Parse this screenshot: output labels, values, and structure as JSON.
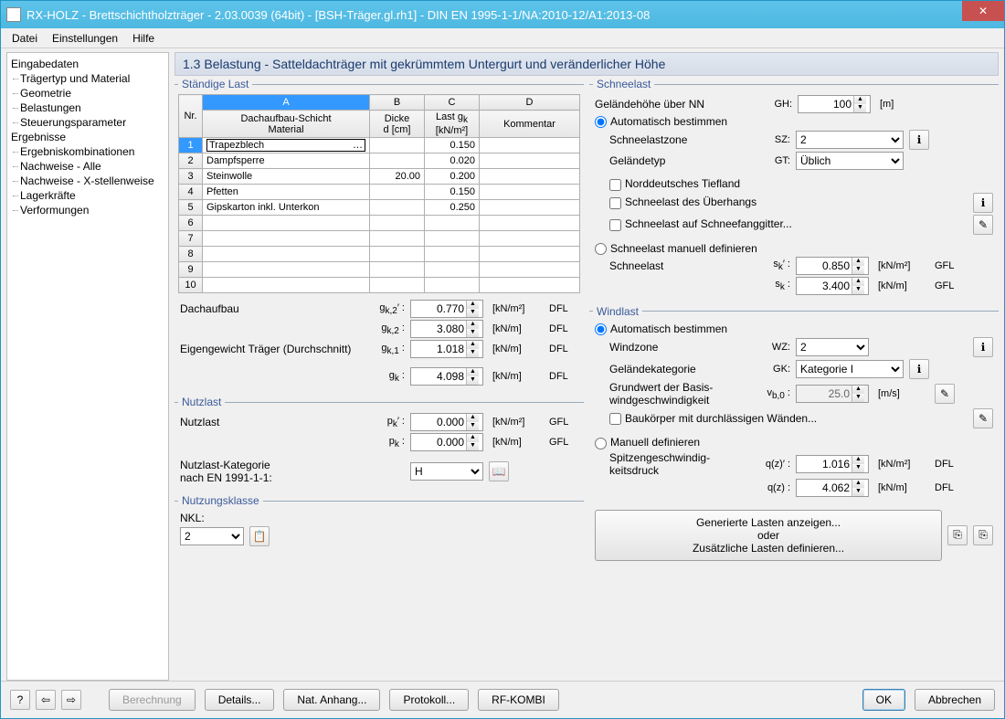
{
  "window": {
    "title": "RX-HOLZ - Brettschichtholzträger - 2.03.0039 (64bit) - [BSH-Träger.gl.rh1] - DIN EN 1995-1-1/NA:2010-12/A1:2013-08"
  },
  "menu": {
    "file": "Datei",
    "settings": "Einstellungen",
    "help": "Hilfe"
  },
  "tree": {
    "g1": "Eingabedaten",
    "i1": "Trägertyp und Material",
    "i2": "Geometrie",
    "i3": "Belastungen",
    "i4": "Steuerungsparameter",
    "g2": "Ergebnisse",
    "i5": "Ergebniskombinationen",
    "i6": "Nachweise - Alle",
    "i7": "Nachweise - X-stellenweise",
    "i8": "Lagerkräfte",
    "i9": "Verformungen"
  },
  "header": "1.3 Belastung  -  Satteldachträger mit gekrümmtem Untergurt und veränderlicher Höhe",
  "staendige": {
    "legend": "Ständige Last",
    "cols": {
      "nr": "Nr.",
      "A": "A",
      "B": "B",
      "C": "C",
      "D": "D",
      "mat_l1": "Dachaufbau-Schicht",
      "mat_l2": "Material",
      "dicke_l1": "Dicke",
      "dicke_l2": "d [cm]",
      "last_l1": "Last g",
      "last_sub": "k",
      "last_l2": "[kN/m²]",
      "komm": "Kommentar"
    },
    "rows": [
      {
        "n": "1",
        "mat": "Trapezblech",
        "d": "",
        "g": "0.150",
        "k": ""
      },
      {
        "n": "2",
        "mat": "Dampfsperre",
        "d": "",
        "g": "0.020",
        "k": ""
      },
      {
        "n": "3",
        "mat": "Steinwolle",
        "d": "20.00",
        "g": "0.200",
        "k": ""
      },
      {
        "n": "4",
        "mat": "Pfetten",
        "d": "",
        "g": "0.150",
        "k": ""
      },
      {
        "n": "5",
        "mat": "Gipskarton inkl. Unterkon",
        "d": "",
        "g": "0.250",
        "k": ""
      },
      {
        "n": "6",
        "mat": "",
        "d": "",
        "g": "",
        "k": ""
      },
      {
        "n": "7",
        "mat": "",
        "d": "",
        "g": "",
        "k": ""
      },
      {
        "n": "8",
        "mat": "",
        "d": "",
        "g": "",
        "k": ""
      },
      {
        "n": "9",
        "mat": "",
        "d": "",
        "g": "",
        "k": ""
      },
      {
        "n": "10",
        "mat": "",
        "d": "",
        "g": "",
        "k": ""
      }
    ],
    "sum": {
      "dach": "Dachaufbau",
      "gk2a": "0.770",
      "gk2a_u": "[kN/m²]",
      "gk2a_c": "DFL",
      "gk2b": "3.080",
      "gk2b_u": "[kN/m]",
      "gk2b_c": "DFL",
      "eig": "Eigengewicht Träger (Durchschnitt)",
      "gk1": "1.018",
      "gk1_u": "[kN/m]",
      "gk1_c": "DFL",
      "gk": "4.098",
      "gk_u": "[kN/m]",
      "gk_c": "DFL",
      "sym_gk2p": "g k,2′ :",
      "sym_gk2": "g k,2 :",
      "sym_gk1": "g k,1 :",
      "sym_gk": "g k :"
    }
  },
  "nutzlast": {
    "legend": "Nutzlast",
    "lab": "Nutzlast",
    "pk1": "0.000",
    "pk1_u": "[kN/m²]",
    "pk1_c": "GFL",
    "pk2": "0.000",
    "pk2_u": "[kN/m]",
    "pk2_c": "GFL",
    "sym_pkp": "p k′ :",
    "sym_pk": "p k :",
    "kat_l1": "Nutzlast-Kategorie",
    "kat_l2": "nach EN 1991-1-1:",
    "kat_val": "H"
  },
  "nkl": {
    "legend": "Nutzungsklasse",
    "lab": "NKL:",
    "val": "2"
  },
  "schnee": {
    "legend": "Schneelast",
    "gel": "Geländehöhe über NN",
    "gel_sym": "GH:",
    "gel_val": "100",
    "gel_u": "[m]",
    "auto": "Automatisch bestimmen",
    "zone": "Schneelastzone",
    "zone_sym": "SZ:",
    "zone_val": "2",
    "typ": "Geländetyp",
    "typ_sym": "GT:",
    "typ_val": "Üblich",
    "cb1": "Norddeutsches Tiefland",
    "cb2": "Schneelast des Überhangs",
    "cb3": "Schneelast auf Schneefanggitter...",
    "man": "Schneelast manuell definieren",
    "sl": "Schneelast",
    "sl_sym": "s k′ :",
    "sl_val": "0.850",
    "sl_u": "[kN/m²]",
    "sl_c": "GFL",
    "sl2_sym": "s k :",
    "sl2_val": "3.400",
    "sl2_u": "[kN/m]",
    "sl2_c": "GFL"
  },
  "wind": {
    "legend": "Windlast",
    "auto": "Automatisch bestimmen",
    "wz": "Windzone",
    "wz_sym": "WZ:",
    "wz_val": "2",
    "gk": "Geländekategorie",
    "gk_sym": "GK:",
    "gk_val": "Kategorie I",
    "grund_l1": "Grundwert der Basis-",
    "grund_l2": "windgeschwindigkeit",
    "grund_sym": "v b,0 :",
    "grund_val": "25.0",
    "grund_u": "[m/s]",
    "cb": "Baukörper mit durchlässigen Wänden...",
    "man": "Manuell definieren",
    "sp_l1": "Spitzengeschwindig-",
    "sp_l2": "keitsdruck",
    "qz1_sym": "q(z)′ :",
    "qz1": "1.016",
    "qz1_u": "[kN/m²]",
    "qz1_c": "DFL",
    "qz2_sym": "q(z) :",
    "qz2": "4.062",
    "qz2_u": "[kN/m]",
    "qz2_c": "DFL",
    "big_l1": "Generierte Lasten anzeigen...",
    "big_l2": "oder",
    "big_l3": "Zusätzliche Lasten definieren..."
  },
  "buttons": {
    "calc": "Berechnung",
    "det": "Details...",
    "nat": "Nat. Anhang...",
    "prot": "Protokoll...",
    "rf": "RF-KOMBI",
    "ok": "OK",
    "cancel": "Abbrechen"
  }
}
